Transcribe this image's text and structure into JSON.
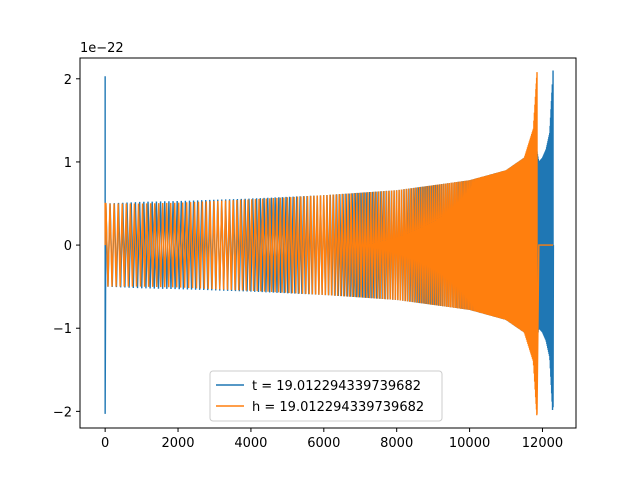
{
  "chart_data": {
    "type": "line",
    "title": "",
    "xlabel": "",
    "ylabel": "",
    "y_offset_label": "1e−22",
    "xlim": [
      -690,
      12920
    ],
    "ylim": [
      -2.2,
      2.25
    ],
    "xticks": [
      0,
      2000,
      4000,
      6000,
      8000,
      10000,
      12000
    ],
    "xtick_labels": [
      "0",
      "2000",
      "4000",
      "6000",
      "8000",
      "10000",
      "12000"
    ],
    "yticks": [
      2,
      1,
      0,
      -1,
      -2
    ],
    "ytick_labels": [
      "2",
      "1",
      "0",
      "−1",
      "−2"
    ],
    "grid": false,
    "legend_placement": "lower center",
    "series": [
      {
        "name": "t = 19.012294339739682",
        "color": "#1f77b4",
        "points": [
          [
            0,
            0
          ],
          [
            0,
            2.03
          ],
          [
            0,
            -2.03
          ],
          [
            0,
            1.38
          ],
          [
            20,
            0.5
          ],
          [
            1000,
            0.52
          ],
          [
            2000,
            0.53
          ],
          [
            4000,
            0.56
          ],
          [
            6000,
            0.6
          ],
          [
            8000,
            0.66
          ],
          [
            10000,
            0.78
          ],
          [
            11000,
            0.9
          ],
          [
            11500,
            1.05
          ],
          [
            11800,
            1.25
          ],
          [
            11900,
            1.0
          ],
          [
            12000,
            1.05
          ],
          [
            12100,
            1.15
          ],
          [
            12200,
            1.35
          ],
          [
            12290,
            2.1
          ],
          [
            12290,
            -1.95
          ],
          [
            12310,
            0.0
          ]
        ]
      },
      {
        "name": "h = 19.012294339739682",
        "color": "#ff7f0e",
        "points": [
          [
            0,
            0
          ],
          [
            20,
            0.5
          ],
          [
            1000,
            0.5
          ],
          [
            2000,
            0.51
          ],
          [
            4000,
            0.55
          ],
          [
            6000,
            0.6
          ],
          [
            8000,
            0.66
          ],
          [
            10000,
            0.78
          ],
          [
            11000,
            0.9
          ],
          [
            11500,
            1.05
          ],
          [
            11750,
            1.4
          ],
          [
            11850,
            2.08
          ],
          [
            11850,
            -2.03
          ],
          [
            11900,
            0.0
          ],
          [
            12290,
            0.0
          ]
        ]
      }
    ],
    "legend": [
      "t = 19.012294339739682",
      "h = 19.012294339739682"
    ]
  }
}
